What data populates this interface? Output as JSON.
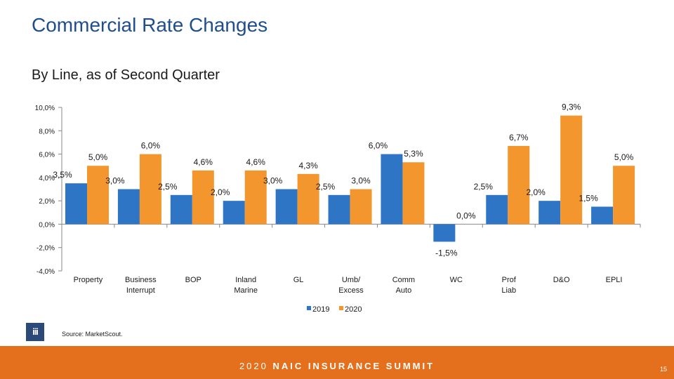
{
  "slide": {
    "title": "Commercial Rate Changes",
    "subtitle": "By Line, as of Second Quarter",
    "source": "Source: MarketScout.",
    "logo_text": "iii",
    "footer_year": "2020",
    "footer_event": "NAIC INSURANCE SUMMIT",
    "page_number": "15"
  },
  "colors": {
    "series_2019": "#2e75c6",
    "series_2020": "#f4962e",
    "title": "#1f4e8c",
    "footer": "#e4701e"
  },
  "chart_data": {
    "type": "bar",
    "title": "",
    "xlabel": "",
    "ylabel": "",
    "ylim": [
      -4,
      10
    ],
    "yticks": [
      -4,
      -2,
      0,
      2,
      4,
      6,
      8,
      10
    ],
    "ytick_labels": [
      "-4,0%",
      "-2,0%",
      "0,0%",
      "2,0%",
      "4,0%",
      "6,0%",
      "8,0%",
      "10,0%"
    ],
    "categories": [
      [
        "Property"
      ],
      [
        "Business",
        "Interrupt"
      ],
      [
        "BOP"
      ],
      [
        "Inland",
        "Marine"
      ],
      [
        "GL"
      ],
      [
        "Umb/",
        "Excess"
      ],
      [
        "Comm",
        "Auto"
      ],
      [
        "WC"
      ],
      [
        "Prof",
        "Liab"
      ],
      [
        "D&O"
      ],
      [
        "EPLI"
      ]
    ],
    "series": [
      {
        "name": "2019",
        "values": [
          3.5,
          3.0,
          2.5,
          2.0,
          3.0,
          2.5,
          6.0,
          -1.5,
          2.5,
          2.0,
          1.5
        ],
        "labels": [
          "3,5%",
          "3,0%",
          "2,5%",
          "2,0%",
          "3,0%",
          "2,5%",
          "6,0%",
          "-1,5%",
          "2,5%",
          "2,0%",
          "1,5%"
        ]
      },
      {
        "name": "2020",
        "values": [
          5.0,
          6.0,
          4.6,
          4.6,
          4.3,
          3.0,
          5.3,
          0.0,
          6.7,
          9.3,
          5.0
        ],
        "labels": [
          "5,0%",
          "6,0%",
          "4,6%",
          "4,6%",
          "4,3%",
          "3,0%",
          "5,3%",
          "0,0%",
          "6,7%",
          "9,3%",
          "5,0%"
        ]
      }
    ],
    "legend_position": "bottom-center",
    "grid": false
  }
}
